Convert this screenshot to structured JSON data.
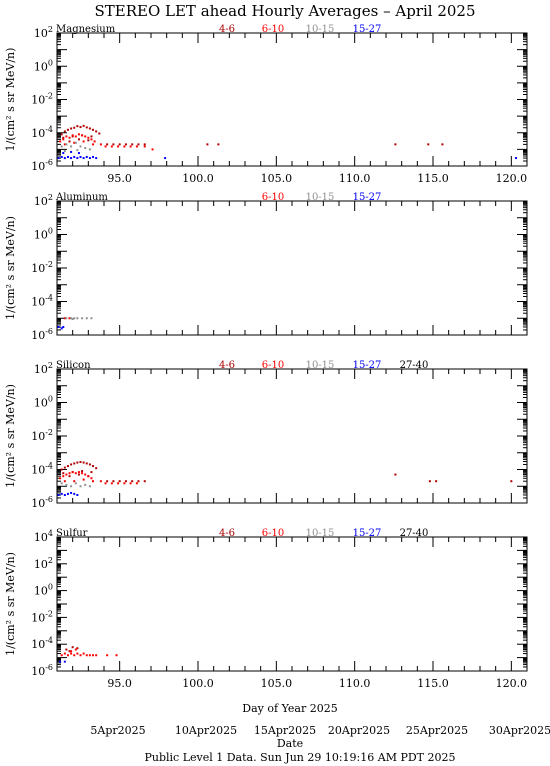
{
  "title": "STEREO LET ahead Hourly Averages – April 2025",
  "ylabel": "1/(cm² s sr MeV/n)",
  "xlabel": "Day of Year 2025",
  "date_label": "Date",
  "date_ticks": [
    "5Apr2025",
    "10Apr2025",
    "15Apr2025",
    "20Apr2025",
    "25Apr2025",
    "30Apr2025"
  ],
  "footer": "Public Level 1 Data. Sun Jun 29 10:19:16 AM PDT 2025",
  "colors": {
    "4-6": "#b00000",
    "6-10": "#ff0000",
    "10-15": "#909090",
    "15-27": "#0000ff",
    "27-40": "#000000"
  },
  "chart_data": [
    {
      "type": "scatter",
      "title": "Magnesium",
      "xlim": [
        91.0,
        121.0
      ],
      "ylim_exp": [
        -6,
        2
      ],
      "log_y": true,
      "x_ticks": [
        "95.0",
        "100.0",
        "105.0",
        "110.0",
        "115.0",
        "120.0"
      ],
      "y_ticks": [
        {
          "base": "10",
          "exp": "2"
        },
        {
          "base": "10",
          "exp": "0"
        },
        {
          "base": "10",
          "exp": "-2"
        },
        {
          "base": "10",
          "exp": "-4"
        },
        {
          "base": "10",
          "exp": "-6"
        }
      ],
      "legend": [
        "4-6",
        "6-10",
        "10-15",
        "15-27"
      ],
      "series": [
        {
          "name": "4-6",
          "points": [
            [
              91.3,
              8e-05
            ],
            [
              91.5,
              0.00012
            ],
            [
              91.7,
              0.00015
            ],
            [
              91.9,
              0.00018
            ],
            [
              92.1,
              0.0002
            ],
            [
              92.3,
              0.00025
            ],
            [
              92.5,
              0.00022
            ],
            [
              92.7,
              0.00026
            ],
            [
              92.9,
              0.00021
            ],
            [
              93.1,
              0.00018
            ],
            [
              93.3,
              0.00015
            ],
            [
              93.5,
              0.00012
            ],
            [
              93.7,
              9e-05
            ],
            [
              91.4,
              5e-05
            ],
            [
              92.0,
              6e-05
            ],
            [
              92.6,
              7e-05
            ],
            [
              93.2,
              6e-05
            ],
            [
              91.8,
              3e-05
            ],
            [
              92.4,
              4e-05
            ],
            [
              93.0,
              3.5e-05
            ],
            [
              94.2,
              2e-05
            ],
            [
              94.6,
              2e-05
            ],
            [
              95.0,
              2e-05
            ],
            [
              95.4,
              2e-05
            ],
            [
              95.8,
              2e-05
            ],
            [
              96.2,
              2e-05
            ],
            [
              96.6,
              2e-05
            ],
            [
              100.6,
              2e-05
            ],
            [
              101.3,
              2e-05
            ],
            [
              112.6,
              2e-05
            ],
            [
              114.7,
              2e-05
            ],
            [
              115.6,
              2e-05
            ]
          ]
        },
        {
          "name": "6-10",
          "points": [
            [
              91.2,
              3e-05
            ],
            [
              91.4,
              4e-05
            ],
            [
              91.6,
              6e-05
            ],
            [
              91.8,
              5e-05
            ],
            [
              92.0,
              7e-05
            ],
            [
              92.2,
              6e-05
            ],
            [
              92.4,
              8e-05
            ],
            [
              92.6,
              7e-05
            ],
            [
              92.8,
              6e-05
            ],
            [
              93.0,
              5e-05
            ],
            [
              93.2,
              4e-05
            ],
            [
              93.4,
              3e-05
            ],
            [
              91.5,
              2e-05
            ],
            [
              92.1,
              2.5e-05
            ],
            [
              92.7,
              3e-05
            ],
            [
              93.3,
              2e-05
            ],
            [
              93.8,
              2e-05
            ],
            [
              94.1,
              1.5e-05
            ],
            [
              94.5,
              1.5e-05
            ],
            [
              94.9,
              1.5e-05
            ],
            [
              95.3,
              1.5e-05
            ],
            [
              95.7,
              1.5e-05
            ],
            [
              96.1,
              1.5e-05
            ],
            [
              96.6,
              1.5e-05
            ],
            [
              97.1,
              1e-05
            ]
          ]
        },
        {
          "name": "10-15",
          "points": [
            [
              91.3,
              1.5e-05
            ],
            [
              91.6,
              2e-05
            ],
            [
              91.9,
              1.5e-05
            ],
            [
              92.2,
              2.5e-05
            ],
            [
              92.5,
              1.5e-05
            ],
            [
              92.8,
              1.2e-05
            ],
            [
              93.1,
              1e-05
            ],
            [
              91.5,
              8e-06
            ],
            [
              92.3,
              9e-06
            ]
          ]
        },
        {
          "name": "15-27",
          "points": [
            [
              91.1,
              3e-06
            ],
            [
              91.3,
              3.5e-06
            ],
            [
              91.5,
              3e-06
            ],
            [
              91.7,
              3.5e-06
            ],
            [
              91.9,
              3e-06
            ],
            [
              92.1,
              3.5e-06
            ],
            [
              92.3,
              3e-06
            ],
            [
              92.5,
              3.5e-06
            ],
            [
              92.7,
              3e-06
            ],
            [
              92.9,
              3.5e-06
            ],
            [
              93.1,
              3e-06
            ],
            [
              93.3,
              3.5e-06
            ],
            [
              93.5,
              3e-06
            ],
            [
              91.4,
              6e-06
            ],
            [
              91.9,
              7e-06
            ],
            [
              92.4,
              6e-06
            ],
            [
              97.9,
              3e-06
            ],
            [
              120.3,
              3e-06
            ]
          ]
        }
      ]
    },
    {
      "type": "scatter",
      "title": "Aluminum",
      "xlim": [
        91.0,
        121.0
      ],
      "ylim_exp": [
        -6,
        2
      ],
      "log_y": true,
      "x_ticks": [],
      "y_ticks": [
        {
          "base": "10",
          "exp": "2"
        },
        {
          "base": "10",
          "exp": "0"
        },
        {
          "base": "10",
          "exp": "-2"
        },
        {
          "base": "10",
          "exp": "-4"
        },
        {
          "base": "10",
          "exp": "-6"
        }
      ],
      "legend": [
        "6-10",
        "10-15",
        "15-27"
      ],
      "series": [
        {
          "name": "6-10",
          "points": [
            [
              91.5,
              1e-05
            ],
            [
              91.8,
              1e-05
            ]
          ]
        },
        {
          "name": "10-15",
          "points": [
            [
              91.6,
              1e-05
            ],
            [
              91.9,
              1e-05
            ],
            [
              92.1,
              1e-05
            ],
            [
              92.3,
              1e-05
            ],
            [
              92.6,
              1e-05
            ],
            [
              92.9,
              1e-05
            ],
            [
              93.2,
              1e-05
            ],
            [
              92.0,
              9e-06
            ]
          ]
        },
        {
          "name": "15-27",
          "points": [
            [
              91.1,
              3e-06
            ],
            [
              91.3,
              2.5e-06
            ],
            [
              91.4,
              3e-06
            ]
          ]
        }
      ]
    },
    {
      "type": "scatter",
      "title": "Silicon",
      "xlim": [
        91.0,
        121.0
      ],
      "ylim_exp": [
        -6,
        2
      ],
      "log_y": true,
      "x_ticks": [],
      "y_ticks": [
        {
          "base": "10",
          "exp": "2"
        },
        {
          "base": "10",
          "exp": "0"
        },
        {
          "base": "10",
          "exp": "-2"
        },
        {
          "base": "10",
          "exp": "-4"
        },
        {
          "base": "10",
          "exp": "-6"
        }
      ],
      "legend": [
        "4-6",
        "6-10",
        "10-15",
        "15-27",
        "27-40"
      ],
      "series": [
        {
          "name": "4-6",
          "points": [
            [
              91.3,
              0.0001
            ],
            [
              91.5,
              0.00013
            ],
            [
              91.7,
              0.00016
            ],
            [
              91.9,
              0.0002
            ],
            [
              92.1,
              0.00023
            ],
            [
              92.3,
              0.00026
            ],
            [
              92.5,
              0.00028
            ],
            [
              92.7,
              0.00026
            ],
            [
              92.9,
              0.00023
            ],
            [
              93.1,
              0.0002
            ],
            [
              93.3,
              0.00016
            ],
            [
              93.5,
              0.00012
            ],
            [
              91.4,
              6e-05
            ],
            [
              92.0,
              7e-05
            ],
            [
              92.6,
              8e-05
            ],
            [
              93.2,
              7e-05
            ],
            [
              91.8,
              4e-05
            ],
            [
              92.4,
              5e-05
            ],
            [
              93.0,
              4e-05
            ],
            [
              94.2,
              2e-05
            ],
            [
              94.6,
              2e-05
            ],
            [
              95.0,
              2e-05
            ],
            [
              95.4,
              2e-05
            ],
            [
              95.8,
              2e-05
            ],
            [
              96.2,
              2e-05
            ],
            [
              96.6,
              2e-05
            ],
            [
              112.6,
              5e-05
            ],
            [
              114.8,
              2e-05
            ],
            [
              115.2,
              2e-05
            ],
            [
              120.0,
              2e-05
            ]
          ]
        },
        {
          "name": "6-10",
          "points": [
            [
              91.2,
              3e-05
            ],
            [
              91.4,
              4e-05
            ],
            [
              91.6,
              5e-05
            ],
            [
              91.8,
              6e-05
            ],
            [
              92.0,
              7e-05
            ],
            [
              92.2,
              6e-05
            ],
            [
              92.4,
              7e-05
            ],
            [
              92.6,
              6e-05
            ],
            [
              92.8,
              5e-05
            ],
            [
              93.0,
              4e-05
            ],
            [
              93.2,
              3e-05
            ],
            [
              91.5,
              2e-05
            ],
            [
              92.1,
              2e-05
            ],
            [
              92.7,
              2.5e-05
            ],
            [
              93.3,
              2e-05
            ],
            [
              93.8,
              2e-05
            ],
            [
              94.1,
              1.5e-05
            ],
            [
              94.5,
              1.5e-05
            ],
            [
              94.9,
              1.5e-05
            ],
            [
              95.3,
              1.5e-05
            ],
            [
              95.7,
              1.5e-05
            ],
            [
              96.1,
              1.5e-05
            ]
          ]
        },
        {
          "name": "10-15",
          "points": [
            [
              91.3,
              1.5e-05
            ],
            [
              91.6,
              1.2e-05
            ],
            [
              91.9,
              1e-05
            ],
            [
              92.2,
              1.5e-05
            ],
            [
              92.5,
              1e-05
            ],
            [
              92.8,
              1.2e-05
            ],
            [
              93.1,
              1e-05
            ]
          ]
        },
        {
          "name": "15-27",
          "points": [
            [
              91.1,
              3e-06
            ],
            [
              91.3,
              3.5e-06
            ],
            [
              91.5,
              3e-06
            ],
            [
              91.7,
              3.5e-06
            ],
            [
              91.9,
              4e-06
            ],
            [
              92.1,
              3.5e-06
            ],
            [
              92.3,
              3e-06
            ]
          ]
        }
      ]
    },
    {
      "type": "scatter",
      "title": "Sulfur",
      "xlim": [
        91.0,
        121.0
      ],
      "ylim_exp": [
        -6,
        4
      ],
      "log_y": true,
      "x_ticks": [
        "95.0",
        "100.0",
        "105.0",
        "110.0",
        "115.0",
        "120.0"
      ],
      "y_ticks": [
        {
          "base": "10",
          "exp": "4"
        },
        {
          "base": "10",
          "exp": "2"
        },
        {
          "base": "10",
          "exp": "0"
        },
        {
          "base": "10",
          "exp": "-2"
        },
        {
          "base": "10",
          "exp": "-4"
        },
        {
          "base": "10",
          "exp": "-6"
        }
      ],
      "legend": [
        "4-6",
        "6-10",
        "10-15",
        "15-27",
        "27-40"
      ],
      "series": [
        {
          "name": "4-6",
          "points": [
            [
              91.6,
              4e-05
            ],
            [
              92.0,
              6e-05
            ],
            [
              92.3,
              5e-05
            ],
            [
              91.8,
              3e-05
            ]
          ]
        },
        {
          "name": "6-10",
          "points": [
            [
              91.3,
              1.5e-05
            ],
            [
              91.5,
              2e-05
            ],
            [
              91.7,
              1.5e-05
            ],
            [
              91.9,
              2e-05
            ],
            [
              92.1,
              1.5e-05
            ],
            [
              92.3,
              2e-05
            ],
            [
              92.5,
              1.5e-05
            ],
            [
              92.7,
              2e-05
            ],
            [
              92.9,
              1.5e-05
            ],
            [
              93.1,
              1.5e-05
            ],
            [
              93.3,
              1.5e-05
            ],
            [
              93.5,
              1.5e-05
            ],
            [
              94.2,
              1.5e-05
            ],
            [
              94.8,
              1.5e-05
            ],
            [
              91.9,
              3e-05
            ],
            [
              92.2,
              4e-05
            ]
          ]
        },
        {
          "name": "15-27",
          "points": [
            [
              91.2,
              5e-06
            ],
            [
              91.5,
              5e-06
            ]
          ]
        }
      ]
    }
  ]
}
